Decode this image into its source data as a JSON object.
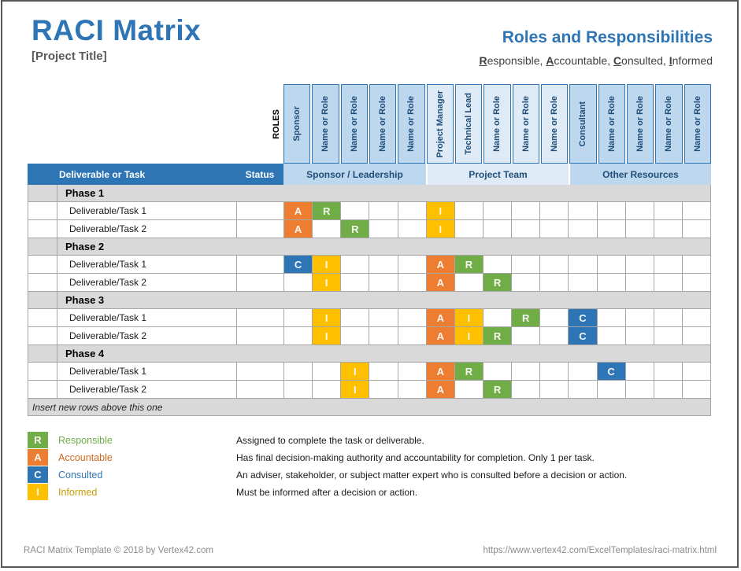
{
  "header": {
    "title": "RACI Matrix",
    "project_title": "[Project Title]",
    "right_title": "Roles and Responsibilities",
    "acronym_parts": [
      {
        "u": "R"
      },
      {
        "t": "esponsible, "
      },
      {
        "u": "A"
      },
      {
        "t": "ccountable, "
      },
      {
        "u": "C"
      },
      {
        "t": "onsulted, "
      },
      {
        "u": "I"
      },
      {
        "t": "nformed"
      }
    ]
  },
  "matrix": {
    "roles_axis_label": "ROLES",
    "corner_header": "Deliverable or Task",
    "status_header": "Status",
    "groups": [
      {
        "label": "Sponsor / Leadership",
        "shade": "medium",
        "roles": [
          "Sponsor",
          "Name or Role",
          "Name or Role",
          "Name or Role",
          "Name or Role"
        ]
      },
      {
        "label": "Project Team",
        "shade": "light",
        "roles": [
          "Project Manager",
          "Technical Lead",
          "Name or Role",
          "Name or Role",
          "Name or Role"
        ]
      },
      {
        "label": "Other Resources",
        "shade": "medium",
        "roles": [
          "Consultant",
          "Name or Role",
          "Name or Role",
          "Name or Role",
          "Name or Role"
        ]
      }
    ],
    "phases": [
      {
        "label": "Phase 1",
        "tasks": [
          {
            "name": "Deliverable/Task 1",
            "status": "",
            "cells": [
              "A",
              "R",
              "",
              "",
              "",
              "I",
              "",
              "",
              "",
              "",
              "",
              "",
              "",
              "",
              ""
            ]
          },
          {
            "name": "Deliverable/Task 2",
            "status": "",
            "cells": [
              "A",
              "",
              "R",
              "",
              "",
              "I",
              "",
              "",
              "",
              "",
              "",
              "",
              "",
              "",
              ""
            ]
          }
        ]
      },
      {
        "label": "Phase 2",
        "tasks": [
          {
            "name": "Deliverable/Task 1",
            "status": "",
            "cells": [
              "C",
              "I",
              "",
              "",
              "",
              "A",
              "R",
              "",
              "",
              "",
              "",
              "",
              "",
              "",
              ""
            ]
          },
          {
            "name": "Deliverable/Task 2",
            "status": "",
            "cells": [
              "",
              "I",
              "",
              "",
              "",
              "A",
              "",
              "R",
              "",
              "",
              "",
              "",
              "",
              "",
              ""
            ]
          }
        ]
      },
      {
        "label": "Phase 3",
        "tasks": [
          {
            "name": "Deliverable/Task 1",
            "status": "",
            "cells": [
              "",
              "I",
              "",
              "",
              "",
              "A",
              "I",
              "",
              "R",
              "",
              "C",
              "",
              "",
              "",
              ""
            ]
          },
          {
            "name": "Deliverable/Task 2",
            "status": "",
            "cells": [
              "",
              "I",
              "",
              "",
              "",
              "A",
              "I",
              "R",
              "",
              "",
              "C",
              "",
              "",
              "",
              ""
            ]
          }
        ]
      },
      {
        "label": "Phase 4",
        "tasks": [
          {
            "name": "Deliverable/Task 1",
            "status": "",
            "cells": [
              "",
              "",
              "I",
              "",
              "",
              "A",
              "R",
              "",
              "",
              "",
              "",
              "C",
              "",
              "",
              ""
            ]
          },
          {
            "name": "Deliverable/Task 2",
            "status": "",
            "cells": [
              "",
              "",
              "I",
              "",
              "",
              "A",
              "",
              "R",
              "",
              "",
              "",
              "",
              "",
              "",
              ""
            ]
          }
        ]
      }
    ],
    "insert_note": "Insert new rows above this one"
  },
  "legend": {
    "items": [
      {
        "letter": "R",
        "label": "Responsible",
        "label_color": "#70AD47",
        "description": "Assigned to complete the task or deliverable."
      },
      {
        "letter": "A",
        "label": "Accountable",
        "label_color": "#D2691E",
        "description": "Has final decision-making authority and accountability for completion. Only 1 per task."
      },
      {
        "letter": "C",
        "label": "Consulted",
        "label_color": "#2E75B6",
        "description": "An adviser, stakeholder, or subject matter expert who is consulted before a decision or action."
      },
      {
        "letter": "I",
        "label": "Informed",
        "label_color": "#C99C00",
        "description": "Must be informed after a decision or action."
      }
    ]
  },
  "footer": {
    "copyright": "RACI Matrix Template © 2018 by Vertex42.com",
    "url": "https://www.vertex42.com/ExcelTemplates/raci-matrix.html"
  },
  "colors": {
    "accent": "#2E75B6",
    "header_band_medium": "#BDD7EE",
    "header_band_light": "#DEEAF6",
    "phase_row_bg": "#D9D9D9",
    "grid_line": "#A6A6A6",
    "raci": {
      "R": "#70AD47",
      "A": "#ED7D31",
      "C": "#2E75B6",
      "I": "#FFC000"
    }
  }
}
